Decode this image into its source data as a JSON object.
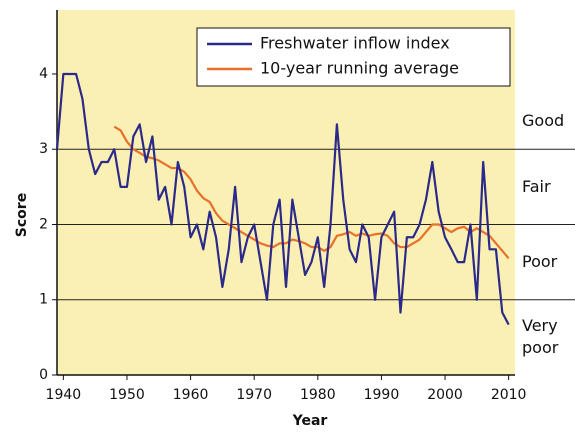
{
  "chart_data": {
    "type": "line",
    "x_label": "Year",
    "y_label": "Score",
    "x": [
      1939,
      1940,
      1941,
      1942,
      1943,
      1944,
      1945,
      1946,
      1947,
      1948,
      1949,
      1950,
      1951,
      1952,
      1953,
      1954,
      1955,
      1956,
      1957,
      1958,
      1959,
      1960,
      1961,
      1962,
      1963,
      1964,
      1965,
      1966,
      1967,
      1968,
      1969,
      1970,
      1971,
      1972,
      1973,
      1974,
      1975,
      1976,
      1977,
      1978,
      1979,
      1980,
      1981,
      1982,
      1983,
      1984,
      1985,
      1986,
      1987,
      1988,
      1989,
      1990,
      1991,
      1992,
      1993,
      1994,
      1995,
      1996,
      1997,
      1998,
      1999,
      2000,
      2001,
      2002,
      2003,
      2004,
      2005,
      2006,
      2007,
      2008,
      2009,
      2010
    ],
    "series": [
      {
        "name": "Freshwater inflow index",
        "color": "#2b2a8a",
        "values": [
          3.0,
          4.0,
          4.0,
          4.0,
          3.67,
          3.0,
          2.67,
          2.83,
          2.83,
          3.0,
          2.5,
          2.5,
          3.17,
          3.33,
          2.83,
          3.17,
          2.33,
          2.5,
          2.0,
          2.83,
          2.5,
          1.83,
          2.0,
          1.67,
          2.17,
          1.83,
          1.17,
          1.67,
          2.5,
          1.5,
          1.83,
          2.0,
          1.5,
          1.0,
          2.0,
          2.33,
          1.17,
          2.33,
          1.83,
          1.33,
          1.5,
          1.83,
          1.17,
          2.0,
          3.33,
          2.33,
          1.67,
          1.5,
          2.0,
          1.83,
          1.0,
          1.83,
          2.0,
          2.17,
          0.83,
          1.83,
          1.83,
          2.0,
          2.33,
          2.83,
          2.17,
          1.83,
          1.67,
          1.5,
          1.5,
          2.0,
          1.0,
          2.83,
          1.67,
          1.67,
          0.83,
          0.67
        ]
      },
      {
        "name": "10-year running average",
        "color": "#e8702a",
        "values": [
          null,
          null,
          null,
          null,
          null,
          null,
          null,
          null,
          null,
          3.3,
          3.25,
          3.1,
          3.0,
          2.95,
          2.9,
          2.88,
          2.85,
          2.8,
          2.75,
          2.75,
          2.7,
          2.6,
          2.45,
          2.35,
          2.3,
          2.15,
          2.05,
          2.0,
          1.95,
          1.9,
          1.85,
          1.8,
          1.75,
          1.72,
          1.7,
          1.75,
          1.75,
          1.8,
          1.78,
          1.75,
          1.7,
          1.7,
          1.65,
          1.7,
          1.85,
          1.87,
          1.9,
          1.85,
          1.88,
          1.85,
          1.87,
          1.88,
          1.85,
          1.75,
          1.7,
          1.7,
          1.75,
          1.8,
          1.9,
          2.0,
          2.0,
          1.95,
          1.9,
          1.95,
          1.97,
          1.9,
          1.95,
          1.9,
          1.85,
          1.75,
          1.65,
          1.55
        ]
      }
    ],
    "bands": [
      {
        "label": "Good",
        "min": 3
      },
      {
        "label": "Fair",
        "min": 2
      },
      {
        "label": "Poor",
        "min": 1
      },
      {
        "label": "Very poor",
        "min": 0
      }
    ],
    "xlim": [
      1939,
      2011
    ],
    "ylim": [
      0,
      4.85
    ],
    "xticks": [
      1940,
      1950,
      1960,
      1970,
      1980,
      1990,
      2000,
      2010
    ],
    "yticks": [
      0,
      1,
      2,
      3,
      4
    ],
    "legend": "upper right"
  }
}
